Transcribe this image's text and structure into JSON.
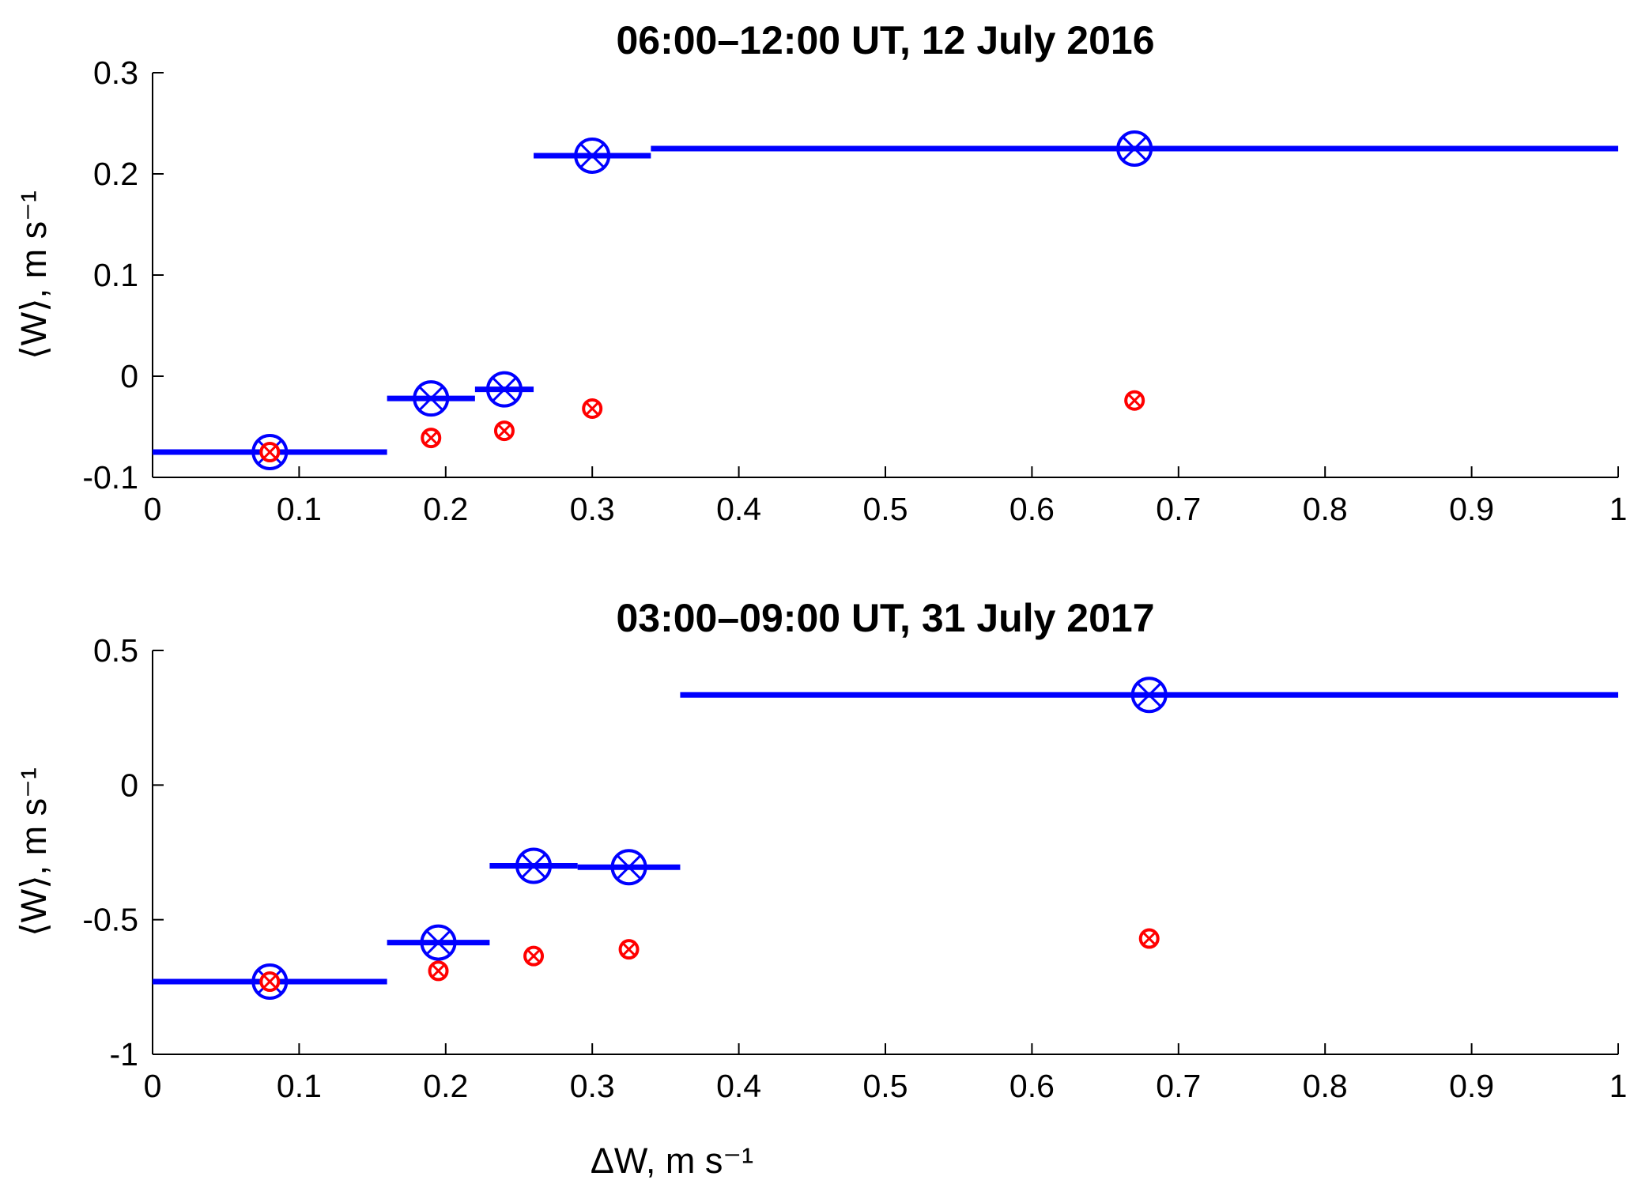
{
  "chart_data": [
    {
      "type": "scatter",
      "title": "06:00–12:00 UT, 12 July 2016",
      "xlabel": "ΔW, m s⁻¹",
      "ylabel": "⟨W⟩, m s⁻¹",
      "xlim": [
        0,
        1
      ],
      "ylim": [
        -0.1,
        0.3
      ],
      "xticks": [
        0,
        0.1,
        0.2,
        0.3,
        0.4,
        0.5,
        0.6,
        0.7,
        0.8,
        0.9,
        1
      ],
      "xtick_labels": [
        "0",
        "0.1",
        "0.2",
        "0.3",
        "0.4",
        "0.5",
        "0.6",
        "0.7",
        "0.8",
        "0.9",
        "1"
      ],
      "yticks": [
        -0.1,
        0,
        0.1,
        0.2,
        0.3
      ],
      "ytick_labels": [
        "-0.1",
        "0",
        "0.1",
        "0.2",
        "0.3"
      ],
      "grid": false,
      "series": [
        {
          "color": "#0000ff",
          "marker": "circled-x-large",
          "points": [
            {
              "x": 0.08,
              "y": -0.075,
              "x_range": [
                0,
                0.16
              ]
            },
            {
              "x": 0.19,
              "y": -0.022,
              "x_range": [
                0.16,
                0.22
              ]
            },
            {
              "x": 0.24,
              "y": -0.013,
              "x_range": [
                0.22,
                0.26
              ]
            },
            {
              "x": 0.3,
              "y": 0.218,
              "x_range": [
                0.26,
                0.34
              ]
            },
            {
              "x": 0.67,
              "y": 0.225,
              "x_range": [
                0.34,
                1.0
              ]
            }
          ]
        },
        {
          "color": "#ff0000",
          "marker": "circled-x-small",
          "points": [
            {
              "x": 0.08,
              "y": -0.075
            },
            {
              "x": 0.19,
              "y": -0.061
            },
            {
              "x": 0.24,
              "y": -0.054
            },
            {
              "x": 0.3,
              "y": -0.032
            },
            {
              "x": 0.67,
              "y": -0.024
            }
          ]
        }
      ]
    },
    {
      "type": "scatter",
      "title": "03:00–09:00 UT, 31 July 2017",
      "xlabel": "ΔW, m s⁻¹",
      "ylabel": "⟨W⟩, m s⁻¹",
      "xlim": [
        0,
        1
      ],
      "ylim": [
        -1,
        0.5
      ],
      "xticks": [
        0,
        0.1,
        0.2,
        0.3,
        0.4,
        0.5,
        0.6,
        0.7,
        0.8,
        0.9,
        1
      ],
      "xtick_labels": [
        "0",
        "0.1",
        "0.2",
        "0.3",
        "0.4",
        "0.5",
        "0.6",
        "0.7",
        "0.8",
        "0.9",
        "1"
      ],
      "yticks": [
        -1,
        -0.5,
        0,
        0.5
      ],
      "ytick_labels": [
        "-1",
        "-0.5",
        "0",
        "0.5"
      ],
      "grid": false,
      "series": [
        {
          "color": "#0000ff",
          "marker": "circled-x-large",
          "points": [
            {
              "x": 0.08,
              "y": -0.73,
              "x_range": [
                0,
                0.16
              ]
            },
            {
              "x": 0.195,
              "y": -0.585,
              "x_range": [
                0.16,
                0.23
              ]
            },
            {
              "x": 0.26,
              "y": -0.3,
              "x_range": [
                0.23,
                0.29
              ]
            },
            {
              "x": 0.325,
              "y": -0.305,
              "x_range": [
                0.29,
                0.36
              ]
            },
            {
              "x": 0.68,
              "y": 0.335,
              "x_range": [
                0.36,
                1.0
              ]
            }
          ]
        },
        {
          "color": "#ff0000",
          "marker": "circled-x-small",
          "points": [
            {
              "x": 0.08,
              "y": -0.73
            },
            {
              "x": 0.195,
              "y": -0.69
            },
            {
              "x": 0.26,
              "y": -0.635
            },
            {
              "x": 0.325,
              "y": -0.61
            },
            {
              "x": 0.68,
              "y": -0.57
            }
          ]
        }
      ]
    }
  ]
}
